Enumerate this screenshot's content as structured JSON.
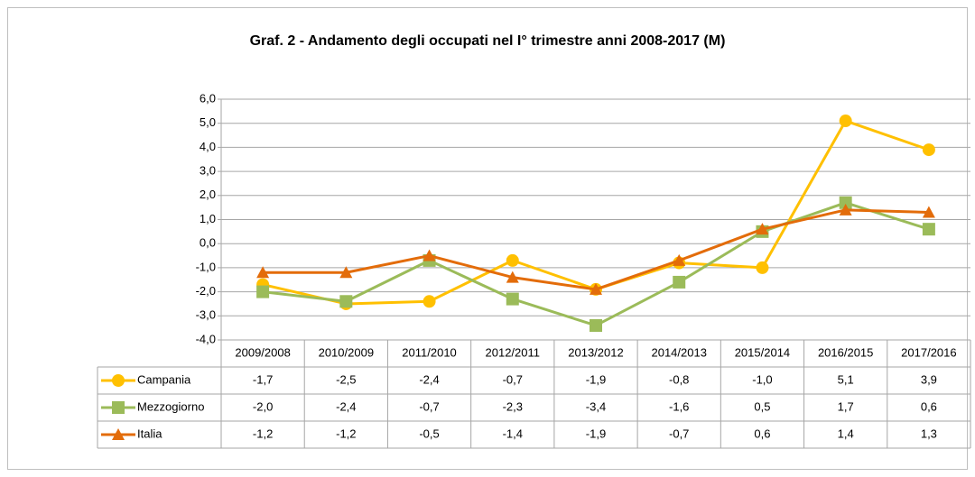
{
  "chart_data": {
    "type": "line",
    "title": "Graf. 2 - Andamento degli occupati nel I° trimestre anni 2008-2017 (M)",
    "categories": [
      "2009/2008",
      "2010/2009",
      "2011/2010",
      "2012/2011",
      "2013/2012",
      "2014/2013",
      "2015/2014",
      "2016/2015",
      "2017/2016"
    ],
    "series": [
      {
        "name": "Campania",
        "color": "#ffc000",
        "marker": "circle",
        "values": [
          -1.7,
          -2.5,
          -2.4,
          -0.7,
          -1.9,
          -0.8,
          -1.0,
          5.1,
          3.9
        ],
        "value_labels": [
          "-1,7",
          "-2,5",
          "-2,4",
          "-0,7",
          "-1,9",
          "-0,8",
          "-1,0",
          "5,1",
          "3,9"
        ]
      },
      {
        "name": "Mezzogiorno",
        "color": "#9bbb59",
        "marker": "square",
        "values": [
          -2.0,
          -2.4,
          -0.7,
          -2.3,
          -3.4,
          -1.6,
          0.5,
          1.7,
          0.6
        ],
        "value_labels": [
          "-2,0",
          "-2,4",
          "-0,7",
          "-2,3",
          "-3,4",
          "-1,6",
          "0,5",
          "1,7",
          "0,6"
        ]
      },
      {
        "name": "Italia",
        "color": "#e36c0a",
        "marker": "triangle",
        "values": [
          -1.2,
          -1.2,
          -0.5,
          -1.4,
          -1.9,
          -0.7,
          0.6,
          1.4,
          1.3
        ],
        "value_labels": [
          "-1,2",
          "-1,2",
          "-0,5",
          "-1,4",
          "-1,9",
          "-0,7",
          "0,6",
          "1,4",
          "1,3"
        ]
      }
    ],
    "ylim": [
      -4,
      6
    ],
    "yticks": [
      {
        "value": -4,
        "label": "-4,0"
      },
      {
        "value": -3,
        "label": "-3,0"
      },
      {
        "value": -2,
        "label": "-2,0"
      },
      {
        "value": -1,
        "label": "-1,0"
      },
      {
        "value": 0,
        "label": "0,0"
      },
      {
        "value": 1,
        "label": "1,0"
      },
      {
        "value": 2,
        "label": "2,0"
      },
      {
        "value": 3,
        "label": "3,0"
      },
      {
        "value": 4,
        "label": "4,0"
      },
      {
        "value": 5,
        "label": "5,0"
      },
      {
        "value": 6,
        "label": "6,0"
      }
    ],
    "grid": true
  }
}
